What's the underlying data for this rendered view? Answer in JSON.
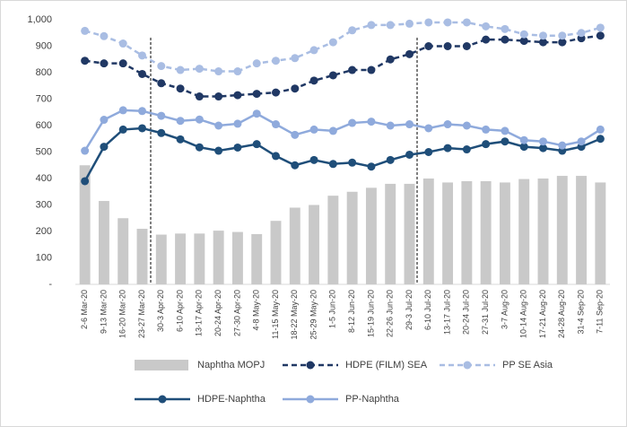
{
  "chart_data": {
    "type": "combo",
    "categories": [
      "2-6 Mar-20",
      "9-13 Mar-20",
      "16-20 Mar-20",
      "23-27 Mar-20",
      "30-3 Apr-20",
      "6-10 Apr-20",
      "13-17 Apr-20",
      "20-24 Apr-20",
      "27-30 Apr-20",
      "4-8 May-20",
      "11-15 May-20",
      "18-22 May-20",
      "25-29 May-20",
      "1-5 Jun-20",
      "8-12 Jun-20",
      "15-19 Jun-20",
      "22-26 Jun-20",
      "29-3 Jul-20",
      "6-10 Jul-20",
      "13-17 Jul-20",
      "20-24 Jul-20",
      "27-31 Jul-20",
      "3-7 Aug-20",
      "10-14 Aug-20",
      "17-21 Aug-20",
      "24-28 Aug-20",
      "31-4 Sep-20",
      "7-11 Sep-20"
    ],
    "series": [
      {
        "name": "Naphtha MOPJ",
        "type": "bar",
        "color": "#c9c9c9",
        "values": [
          450,
          315,
          250,
          210,
          188,
          192,
          192,
          203,
          198,
          190,
          240,
          290,
          300,
          335,
          350,
          365,
          380,
          380,
          400,
          385,
          390,
          390,
          385,
          398,
          400,
          410,
          410,
          385
        ]
      },
      {
        "name": "HDPE (FILM) SEA",
        "type": "line",
        "dashed": true,
        "color": "#203864",
        "values": [
          845,
          835,
          835,
          795,
          760,
          740,
          710,
          710,
          715,
          720,
          725,
          740,
          770,
          790,
          810,
          810,
          850,
          870,
          900,
          900,
          900,
          925,
          925,
          920,
          915,
          915,
          930,
          940
        ]
      },
      {
        "name": "PP SE Asia",
        "type": "line",
        "dashed": true,
        "color": "#a9bde3",
        "values": [
          958,
          938,
          910,
          865,
          825,
          810,
          815,
          805,
          805,
          835,
          845,
          855,
          885,
          915,
          960,
          980,
          980,
          985,
          990,
          990,
          990,
          975,
          965,
          945,
          940,
          940,
          950,
          970
        ]
      },
      {
        "name": "HDPE-Naphtha",
        "type": "line",
        "dashed": false,
        "color": "#1f4e79",
        "values": [
          390,
          520,
          585,
          590,
          572,
          548,
          518,
          505,
          517,
          530,
          485,
          450,
          470,
          455,
          460,
          445,
          470,
          490,
          500,
          515,
          510,
          530,
          540,
          520,
          515,
          505,
          520,
          550
        ]
      },
      {
        "name": "PP-Naphtha",
        "type": "line",
        "dashed": false,
        "color": "#8faadc",
        "values": [
          505,
          622,
          658,
          655,
          637,
          618,
          623,
          600,
          607,
          645,
          605,
          565,
          585,
          580,
          610,
          615,
          600,
          605,
          590,
          605,
          600,
          585,
          580,
          545,
          540,
          525,
          540,
          585
        ]
      }
    ],
    "ylim": [
      0,
      1000
    ],
    "yticks": [
      {
        "value": 0,
        "label": "-"
      },
      100,
      200,
      300,
      400,
      500,
      600,
      700,
      800,
      900,
      {
        "value": 1000,
        "label": "1,000"
      }
    ],
    "grid": false,
    "legend": "bottom"
  }
}
